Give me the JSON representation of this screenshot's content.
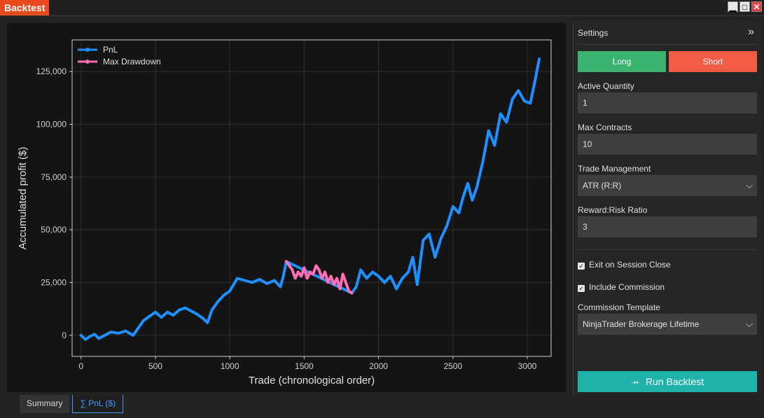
{
  "window": {
    "title": "Backtest",
    "minimize_label": "▁",
    "maximize_label": "□",
    "close_label": "✕"
  },
  "chart_data": {
    "type": "line",
    "xlabel": "Trade (chronological order)",
    "ylabel": "Accumulated profit ($)",
    "xlim": [
      -60,
      3160
    ],
    "ylim": [
      -10000,
      140000
    ],
    "xticks": [
      0,
      500,
      1000,
      1500,
      2000,
      2500,
      3000
    ],
    "xtick_labels": [
      "0",
      "500",
      "1000",
      "1500",
      "2000",
      "2500",
      "3000"
    ],
    "yticks": [
      0,
      25000,
      50000,
      75000,
      100000,
      125000
    ],
    "ytick_labels": [
      "0",
      "25,000",
      "50,000",
      "75,000",
      "100,000",
      "125,000"
    ],
    "grid": true,
    "legend": "top-left",
    "legend_labels": [
      "PnL",
      "Max Drawdown"
    ],
    "series": [
      {
        "name": "PnL",
        "color": "#1e90ff",
        "x": [
          0,
          30,
          60,
          90,
          120,
          160,
          200,
          250,
          300,
          350,
          380,
          420,
          460,
          500,
          540,
          580,
          620,
          660,
          700,
          740,
          780,
          820,
          850,
          880,
          920,
          960,
          1000,
          1050,
          1100,
          1150,
          1200,
          1250,
          1300,
          1340,
          1360,
          1380,
          1820,
          1850,
          1880,
          1920,
          1960,
          2000,
          2040,
          2080,
          2120,
          2160,
          2200,
          2230,
          2260,
          2300,
          2340,
          2380,
          2420,
          2460,
          2500,
          2540,
          2570,
          2600,
          2630,
          2660,
          2700,
          2740,
          2780,
          2820,
          2860,
          2900,
          2940,
          2980,
          3020,
          3050,
          3080
        ],
        "y": [
          0,
          -2000,
          -500,
          500,
          -1500,
          0,
          1500,
          1000,
          2000,
          0,
          3000,
          7000,
          9000,
          11000,
          8500,
          11000,
          9500,
          12000,
          13000,
          11500,
          10000,
          8000,
          6000,
          12000,
          16000,
          19000,
          21000,
          27000,
          26000,
          25000,
          26500,
          24500,
          26000,
          23000,
          28000,
          35000,
          20000,
          23000,
          31000,
          27000,
          30000,
          28000,
          25000,
          28000,
          22000,
          27000,
          30000,
          37000,
          24000,
          45000,
          48000,
          37000,
          46000,
          52000,
          61000,
          58000,
          66000,
          72000,
          64000,
          70000,
          82000,
          97000,
          90000,
          105000,
          101000,
          112000,
          116000,
          111000,
          110000,
          120000,
          131000
        ]
      },
      {
        "name": "Max Drawdown",
        "color": "#ff6eb4",
        "x": [
          1380,
          1400,
          1420,
          1440,
          1460,
          1480,
          1500,
          1520,
          1540,
          1560,
          1580,
          1600,
          1620,
          1640,
          1660,
          1680,
          1700,
          1720,
          1740,
          1760,
          1780,
          1800,
          1820
        ],
        "y": [
          35000,
          33000,
          31000,
          27000,
          30000,
          28000,
          32000,
          27000,
          30000,
          29000,
          33000,
          31000,
          27000,
          30000,
          25000,
          28000,
          24000,
          27000,
          22000,
          29000,
          25000,
          21000,
          20000
        ]
      }
    ]
  },
  "settings": {
    "header": "Settings",
    "expand_label": "»",
    "long_label": "Long",
    "short_label": "Short",
    "active_quantity_label": "Active Quantity",
    "active_quantity_value": "1",
    "max_contracts_label": "Max Contracts",
    "max_contracts_value": "10",
    "trade_management_label": "Trade Management",
    "trade_management_value": "ATR (R:R)",
    "reward_risk_label": "Reward:Risk Ratio",
    "reward_risk_value": "3",
    "exit_on_session_close_label": "Exit on Session Close",
    "include_commission_label": "Include Commission",
    "commission_template_label": "Commission Template",
    "commission_template_value": "NinjaTrader Brokerage Lifetime",
    "run_label": "Run Backtest",
    "run_icon": "⤞"
  },
  "tabs": {
    "summary": "Summary",
    "pnl": "∑ PnL ($)"
  }
}
